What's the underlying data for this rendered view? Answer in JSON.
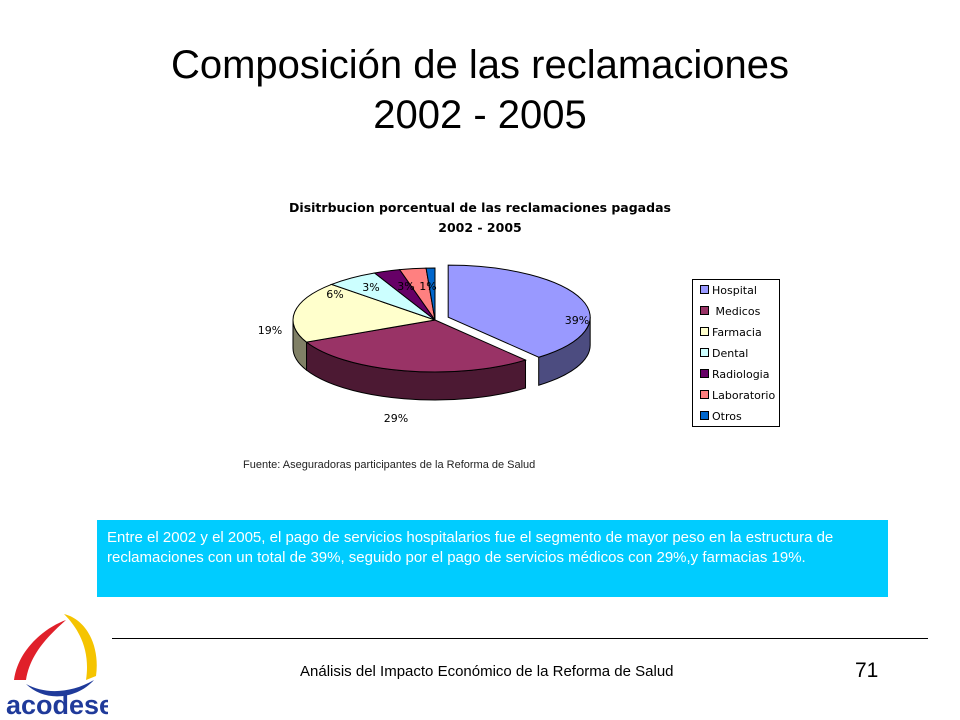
{
  "slide": {
    "title_line1": "Composición de las reclamaciones",
    "title_line2": "2002 - 2005",
    "source": "Fuente: Aseguradoras participantes de la Reforma de Salud",
    "summary": "Entre el 2002 y el 2005, el pago de servicios hospitalarios fue el segmento de mayor peso en la estructura de reclamaciones con un total de 39%, seguido por el pago de servicios médicos con 29%,y farmacias 19%.",
    "footer": "Análisis del Impacto Económico de la Reforma de Salud",
    "page_number": "71",
    "logo_text": "acodese"
  },
  "chart_data": {
    "type": "pie",
    "title_line1": "Disitrbucion porcentual de las reclamaciones pagadas",
    "title_line2": "2002 - 2005",
    "legend_position": "right",
    "slices": [
      {
        "label": "Hospital",
        "display_label": "Hospital",
        "value": 39,
        "value_label": "39%",
        "color": "#9999ff",
        "side_color": "#4c4c80"
      },
      {
        "label": "Medicos",
        "display_label": " Medicos",
        "value": 29,
        "value_label": "29%",
        "color": "#993366",
        "side_color": "#4c1933"
      },
      {
        "label": "Farmacia",
        "display_label": "Farmacia",
        "value": 19,
        "value_label": "19%",
        "color": "#ffffcc",
        "side_color": "#808066"
      },
      {
        "label": "Dental",
        "display_label": "Dental",
        "value": 6,
        "value_label": "6%",
        "color": "#ccffff",
        "side_color": "#668080"
      },
      {
        "label": "Radiologia",
        "display_label": "Radiologia",
        "value": 3,
        "value_label": "3%",
        "color": "#660066",
        "side_color": "#330033"
      },
      {
        "label": "Laboratorio",
        "display_label": "Laboratorio",
        "value": 3,
        "value_label": "3%",
        "color": "#ff8080",
        "side_color": "#804040"
      },
      {
        "label": "Otros",
        "display_label": "Otros",
        "value": 1,
        "value_label": "1%",
        "color": "#0066cc",
        "side_color": "#003366"
      }
    ]
  }
}
